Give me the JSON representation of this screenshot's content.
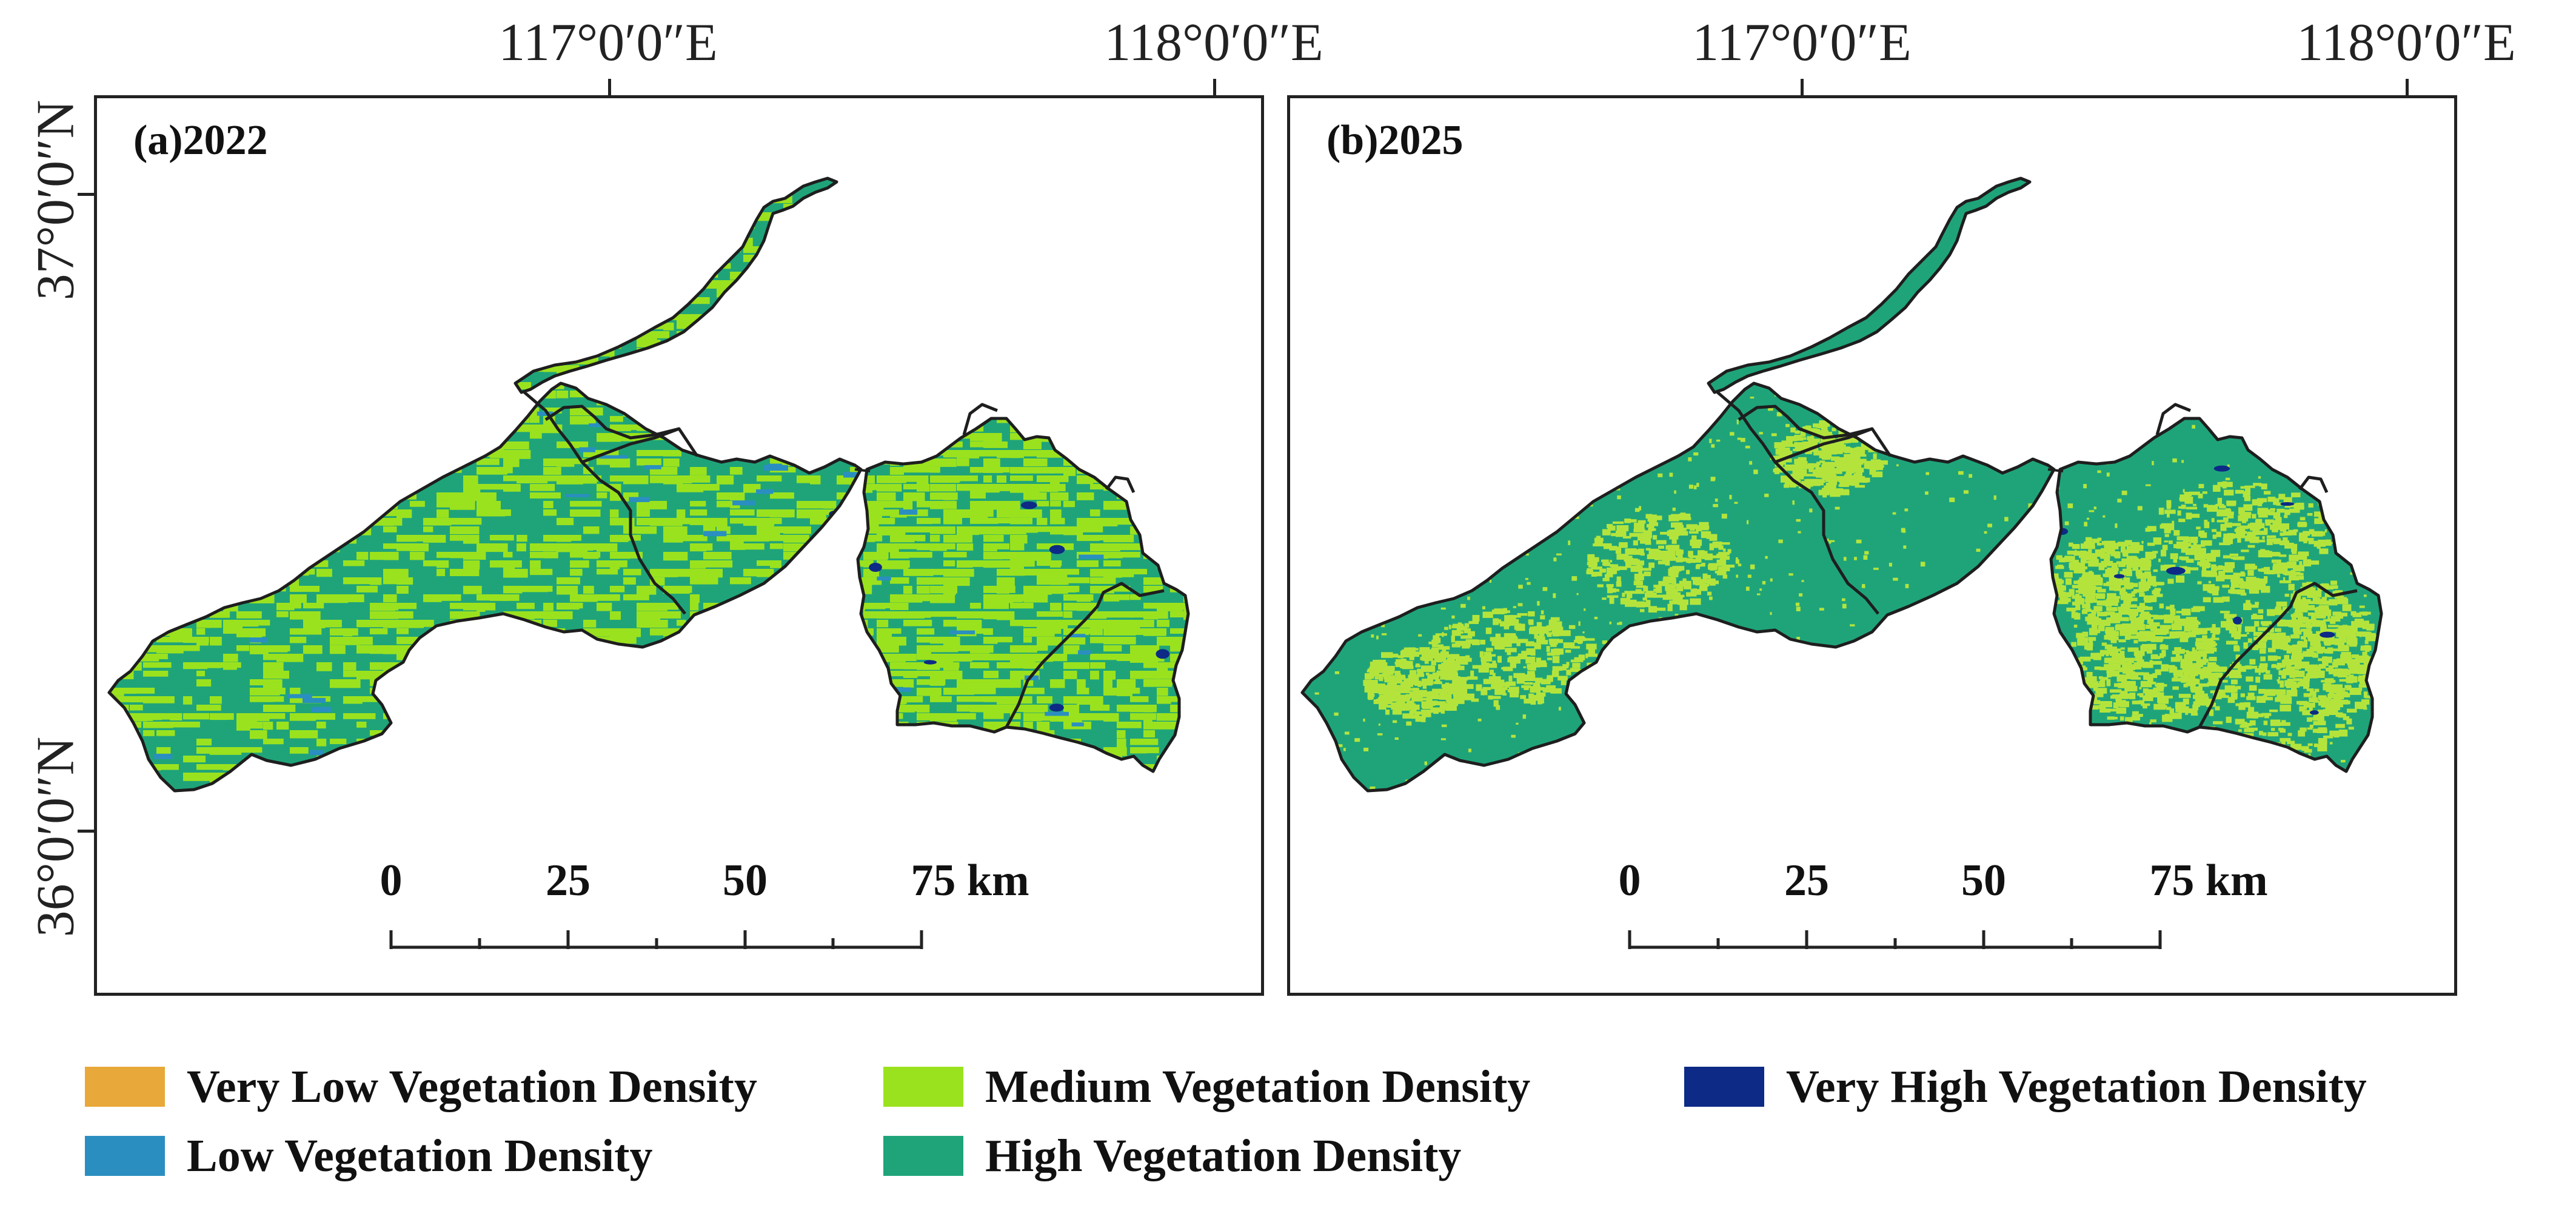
{
  "axes": {
    "longitude_labels": [
      "117°0′0″E",
      "118°0′0″E"
    ],
    "latitude_labels": [
      "37°0′0″N",
      "36°0′0″N"
    ]
  },
  "panels": [
    {
      "label": "(a)2022",
      "dominant_class": "Medium Vegetation Density",
      "scale_labels": [
        "0",
        "25",
        "50",
        "75 km"
      ]
    },
    {
      "label": "(b)2025",
      "dominant_class": "High Vegetation Density",
      "scale_labels": [
        "0",
        "25",
        "50",
        "75 km"
      ]
    }
  ],
  "legend": [
    {
      "label": "Very Low Vegetation Density",
      "color": "#e8a93a"
    },
    {
      "label": "Low Vegetation Density",
      "color": "#2a8fc0"
    },
    {
      "label": "Medium Vegetation Density",
      "color": "#9be21e"
    },
    {
      "label": "High Vegetation Density",
      "color": "#1fa47a"
    },
    {
      "label": "Very High Vegetation Density",
      "color": "#0d2a86"
    }
  ],
  "colors": {
    "frame": "#222222",
    "boundary": "#1e1e1e",
    "medium_2022": "#9be21e",
    "medium_2025": "#b4e43c",
    "high": "#1fa47a",
    "very_high": "#0d2a86",
    "low": "#2a8fc0"
  }
}
